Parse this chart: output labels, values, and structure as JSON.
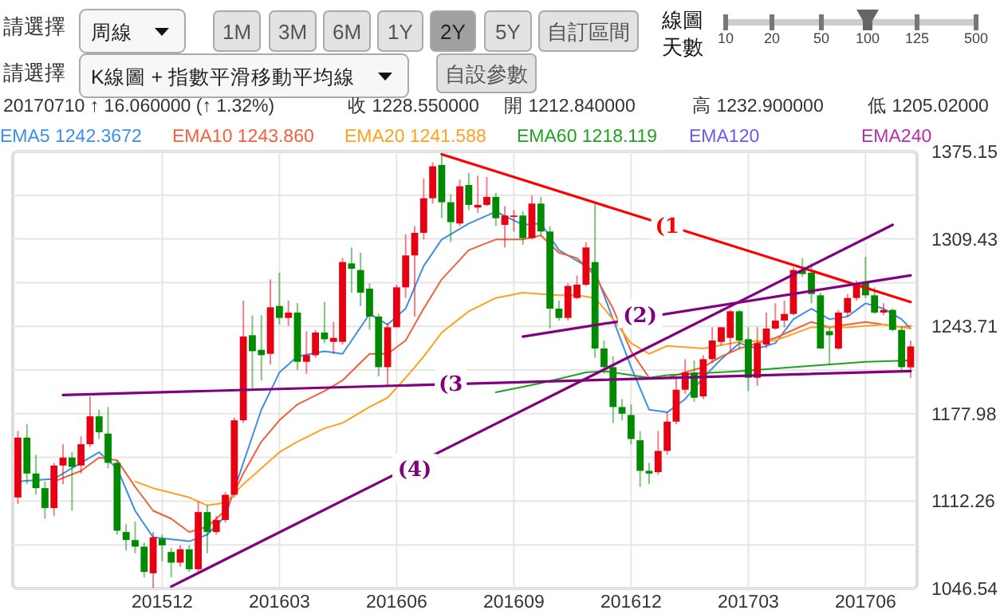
{
  "chart_data": {
    "type": "candlestick",
    "x": [
      "2015-08-17",
      "2015-08-24",
      "2015-08-31",
      "2015-09-07",
      "2015-09-14",
      "2015-09-21",
      "2015-09-28",
      "2015-10-05",
      "2015-10-12",
      "2015-10-19",
      "2015-10-26",
      "2015-11-02",
      "2015-11-09",
      "2015-11-16",
      "2015-11-23",
      "2015-11-30",
      "2015-12-07",
      "2015-12-14",
      "2015-12-21",
      "2015-12-28",
      "2016-01-04",
      "2016-01-11",
      "2016-01-18",
      "2016-01-25",
      "2016-02-01",
      "2016-02-08",
      "2016-02-15",
      "2016-02-22",
      "2016-02-29",
      "2016-03-07",
      "2016-03-14",
      "2016-03-21",
      "2016-03-28",
      "2016-04-04",
      "2016-04-11",
      "2016-04-18",
      "2016-04-25",
      "2016-05-02",
      "2016-05-09",
      "2016-05-16",
      "2016-05-23",
      "2016-05-30",
      "2016-06-06",
      "2016-06-13",
      "2016-06-20",
      "2016-06-27",
      "2016-07-04",
      "2016-07-11",
      "2016-07-18",
      "2016-07-25",
      "2016-08-01",
      "2016-08-08",
      "2016-08-15",
      "2016-08-22",
      "2016-08-29",
      "2016-09-05",
      "2016-09-12",
      "2016-09-19",
      "2016-09-26",
      "2016-10-03",
      "2016-10-10",
      "2016-10-17",
      "2016-10-24",
      "2016-10-31",
      "2016-11-07",
      "2016-11-14",
      "2016-11-21",
      "2016-11-28",
      "2016-12-05",
      "2016-12-12",
      "2016-12-19",
      "2016-12-26",
      "2017-01-02",
      "2017-01-09",
      "2017-01-16",
      "2017-01-23",
      "2017-01-30",
      "2017-02-06",
      "2017-02-13",
      "2017-02-20",
      "2017-02-27",
      "2017-03-06",
      "2017-03-13",
      "2017-03-20",
      "2017-03-27",
      "2017-04-03",
      "2017-04-10",
      "2017-04-17",
      "2017-04-24",
      "2017-05-01",
      "2017-05-08",
      "2017-05-15",
      "2017-05-22",
      "2017-05-29",
      "2017-06-05",
      "2017-06-12",
      "2017-06-19",
      "2017-06-26",
      "2017-07-03",
      "2017-07-10"
    ],
    "ohlc": [
      [
        1115,
        1165,
        1110,
        1160
      ],
      [
        1160,
        1170,
        1125,
        1133
      ],
      [
        1133,
        1147,
        1117,
        1122
      ],
      [
        1122,
        1127,
        1099,
        1107
      ],
      [
        1107,
        1141,
        1101,
        1139
      ],
      [
        1139,
        1155,
        1125,
        1145
      ],
      [
        1145,
        1149,
        1105,
        1138
      ],
      [
        1139,
        1161,
        1133,
        1155
      ],
      [
        1155,
        1191,
        1153,
        1176
      ],
      [
        1176,
        1181,
        1159,
        1164
      ],
      [
        1163,
        1183,
        1137,
        1141
      ],
      [
        1141,
        1143,
        1087,
        1090
      ],
      [
        1089,
        1095,
        1075,
        1083
      ],
      [
        1083,
        1097,
        1073,
        1078
      ],
      [
        1078,
        1081,
        1055,
        1059
      ],
      [
        1058,
        1089,
        1047,
        1085
      ],
      [
        1084,
        1087,
        1067,
        1079
      ],
      [
        1074,
        1077,
        1055,
        1066
      ],
      [
        1066,
        1079,
        1063,
        1076
      ],
      [
        1076,
        1079,
        1059,
        1061
      ],
      [
        1061,
        1112,
        1059,
        1104
      ],
      [
        1104,
        1109,
        1073,
        1089
      ],
      [
        1089,
        1101,
        1087,
        1098
      ],
      [
        1098,
        1119,
        1096,
        1117
      ],
      [
        1117,
        1175,
        1115,
        1173
      ],
      [
        1173,
        1263,
        1171,
        1236
      ],
      [
        1237,
        1252,
        1197,
        1225
      ],
      [
        1226,
        1252,
        1203,
        1222
      ],
      [
        1223,
        1279,
        1215,
        1258
      ],
      [
        1259,
        1284,
        1245,
        1250
      ],
      [
        1250,
        1263,
        1244,
        1254
      ],
      [
        1254,
        1261,
        1211,
        1217
      ],
      [
        1217,
        1240,
        1208,
        1222
      ],
      [
        1222,
        1241,
        1220,
        1239
      ],
      [
        1239,
        1262,
        1231,
        1234
      ],
      [
        1232,
        1247,
        1223,
        1235
      ],
      [
        1232,
        1295,
        1230,
        1292
      ],
      [
        1291,
        1303,
        1269,
        1287
      ],
      [
        1286,
        1299,
        1259,
        1269
      ],
      [
        1272,
        1276,
        1241,
        1251
      ],
      [
        1251,
        1253,
        1206,
        1213
      ],
      [
        1213,
        1246,
        1199,
        1243
      ],
      [
        1243,
        1275,
        1243,
        1273
      ],
      [
        1273,
        1313,
        1265,
        1297
      ],
      [
        1297,
        1319,
        1251,
        1314
      ],
      [
        1314,
        1355,
        1309,
        1340
      ],
      [
        1340,
        1367,
        1336,
        1364
      ],
      [
        1365,
        1374,
        1325,
        1337
      ],
      [
        1337,
        1343,
        1307,
        1322
      ],
      [
        1321,
        1354,
        1319,
        1349
      ],
      [
        1350,
        1359,
        1331,
        1335
      ],
      [
        1333,
        1357,
        1329,
        1335
      ],
      [
        1335,
        1356,
        1334,
        1341
      ],
      [
        1341,
        1344,
        1319,
        1325
      ],
      [
        1320,
        1334,
        1303,
        1327
      ],
      [
        1326,
        1331,
        1315,
        1327
      ],
      [
        1327,
        1330,
        1305,
        1310
      ],
      [
        1310,
        1342,
        1309,
        1336
      ],
      [
        1336,
        1341,
        1312,
        1315
      ],
      [
        1315,
        1319,
        1242,
        1257
      ],
      [
        1257,
        1263,
        1248,
        1250
      ],
      [
        1250,
        1276,
        1248,
        1274
      ],
      [
        1265,
        1282,
        1264,
        1275
      ],
      [
        1275,
        1307,
        1274,
        1303
      ],
      [
        1292,
        1336,
        1220,
        1227
      ],
      [
        1227,
        1233,
        1208,
        1213
      ],
      [
        1213,
        1221,
        1171,
        1183
      ],
      [
        1183,
        1189,
        1173,
        1178
      ],
      [
        1177,
        1185,
        1155,
        1159
      ],
      [
        1158,
        1165,
        1123,
        1135
      ],
      [
        1135,
        1141,
        1125,
        1133
      ],
      [
        1134,
        1165,
        1132,
        1150
      ],
      [
        1150,
        1179,
        1147,
        1172
      ],
      [
        1172,
        1205,
        1170,
        1196
      ],
      [
        1196,
        1219,
        1193,
        1209
      ],
      [
        1209,
        1218,
        1187,
        1190
      ],
      [
        1191,
        1222,
        1189,
        1219
      ],
      [
        1219,
        1243,
        1216,
        1233
      ],
      [
        1232,
        1243,
        1229,
        1243
      ],
      [
        1235,
        1256,
        1225,
        1255
      ],
      [
        1255,
        1256,
        1227,
        1233
      ],
      [
        1234,
        1243,
        1195,
        1205
      ],
      [
        1205,
        1243,
        1199,
        1231
      ],
      [
        1230,
        1254,
        1227,
        1242
      ],
      [
        1242,
        1261,
        1241,
        1248
      ],
      [
        1248,
        1263,
        1243,
        1253
      ],
      [
        1253,
        1288,
        1252,
        1286
      ],
      [
        1286,
        1295,
        1281,
        1283
      ],
      [
        1284,
        1291,
        1261,
        1268
      ],
      [
        1267,
        1269,
        1227,
        1227
      ],
      [
        1240,
        1243,
        1215,
        1237
      ],
      [
        1227,
        1256,
        1226,
        1254
      ],
      [
        1254,
        1268,
        1251,
        1265
      ],
      [
        1265,
        1278,
        1263,
        1276
      ],
      [
        1277,
        1296,
        1265,
        1267
      ],
      [
        1267,
        1273,
        1253,
        1254
      ],
      [
        1254,
        1261,
        1252,
        1256
      ],
      [
        1256,
        1257,
        1240,
        1241
      ],
      [
        1241,
        1244,
        1211,
        1213
      ],
      [
        1212.84,
        1232.9,
        1205.02,
        1228.55
      ]
    ],
    "series": [
      {
        "type": "line",
        "name": "EMA5 1242.3672",
        "color": "#3d8fe6",
        "x": [
          "2015-08-17",
          "2015-09-14",
          "2015-10-05",
          "2015-10-19",
          "2015-11-02",
          "2015-11-16",
          "2015-11-30",
          "2015-12-28",
          "2016-01-11",
          "2016-01-25",
          "2016-02-08",
          "2016-02-22",
          "2016-03-07",
          "2016-03-21",
          "2016-04-11",
          "2016-04-25",
          "2016-05-16",
          "2016-05-30",
          "2016-06-13",
          "2016-06-27",
          "2016-07-11",
          "2016-08-01",
          "2016-08-22",
          "2016-09-12",
          "2016-09-26",
          "2016-10-10",
          "2016-11-07",
          "2016-11-21",
          "2016-12-05",
          "2016-12-19",
          "2017-01-02",
          "2017-01-16",
          "2017-01-30",
          "2017-02-13",
          "2017-02-27",
          "2017-03-13",
          "2017-03-27",
          "2017-04-10",
          "2017-04-24",
          "2017-05-08",
          "2017-05-22",
          "2017-06-05",
          "2017-06-19",
          "2017-07-03",
          "2017-07-10"
        ],
        "values": [
          1127,
          1129,
          1141,
          1149,
          1137,
          1105,
          1085,
          1082,
          1087,
          1101,
          1141,
          1181,
          1209,
          1221,
          1225,
          1223,
          1253,
          1245,
          1257,
          1289,
          1309,
          1321,
          1330,
          1320,
          1321,
          1301,
          1285,
          1249,
          1213,
          1181,
          1179,
          1189,
          1205,
          1219,
          1231,
          1227,
          1231,
          1249,
          1257,
          1249,
          1251,
          1261,
          1257,
          1249,
          1242
        ]
      },
      {
        "type": "line",
        "name": "EMA10 1243.860",
        "color": "#f0603c",
        "x": [
          "2015-09-14",
          "2015-10-05",
          "2015-10-19",
          "2015-11-02",
          "2015-11-16",
          "2015-11-30",
          "2015-12-14",
          "2015-12-28",
          "2016-01-11",
          "2016-01-25",
          "2016-02-08",
          "2016-02-22",
          "2016-03-07",
          "2016-03-21",
          "2016-04-11",
          "2016-04-25",
          "2016-05-16",
          "2016-05-30",
          "2016-06-13",
          "2016-06-27",
          "2016-07-11",
          "2016-08-01",
          "2016-08-22",
          "2016-09-12",
          "2016-09-26",
          "2016-10-10",
          "2016-10-24",
          "2016-11-07",
          "2016-11-21",
          "2016-12-05",
          "2016-12-19",
          "2017-01-02",
          "2017-01-16",
          "2017-01-30",
          "2017-02-13",
          "2017-02-27",
          "2017-03-13",
          "2017-03-27",
          "2017-04-10",
          "2017-04-24",
          "2017-05-08",
          "2017-05-22",
          "2017-06-05",
          "2017-06-19",
          "2017-07-03",
          "2017-07-10"
        ],
        "values": [
          1127,
          1135,
          1145,
          1143,
          1123,
          1105,
          1099,
          1089,
          1093,
          1105,
          1133,
          1157,
          1173,
          1185,
          1195,
          1203,
          1223,
          1223,
          1233,
          1257,
          1279,
          1301,
          1309,
          1309,
          1312,
          1299,
          1295,
          1282,
          1257,
          1225,
          1205,
          1205,
          1209,
          1213,
          1221,
          1227,
          1231,
          1235,
          1241,
          1247,
          1243,
          1245,
          1247,
          1245,
          1243,
          1244
        ]
      },
      {
        "type": "line",
        "name": "EMA20 1241.588",
        "color": "#ffa020",
        "x": [
          "2015-11-16",
          "2015-11-30",
          "2015-12-28",
          "2016-01-11",
          "2016-01-25",
          "2016-02-08",
          "2016-02-22",
          "2016-03-07",
          "2016-03-21",
          "2016-04-11",
          "2016-04-25",
          "2016-05-16",
          "2016-05-30",
          "2016-06-13",
          "2016-06-27",
          "2016-07-11",
          "2016-08-01",
          "2016-08-22",
          "2016-09-12",
          "2016-09-26",
          "2016-10-10",
          "2016-10-24",
          "2016-11-07",
          "2016-11-21",
          "2016-12-05",
          "2016-12-19",
          "2017-01-02",
          "2017-01-30",
          "2017-02-27",
          "2017-03-27",
          "2017-04-24",
          "2017-05-22",
          "2017-06-19",
          "2017-07-10"
        ],
        "values": [
          1127,
          1122,
          1115,
          1109,
          1111,
          1125,
          1137,
          1149,
          1157,
          1167,
          1171,
          1183,
          1190,
          1205,
          1221,
          1239,
          1255,
          1265,
          1269,
          1268,
          1267,
          1267,
          1265,
          1249,
          1231,
          1223,
          1229,
          1227,
          1232,
          1233,
          1243,
          1243,
          1245,
          1242
        ]
      },
      {
        "type": "line",
        "name": "EMA60 1218.119",
        "color": "#22a022",
        "x": [
          "2016-08-22",
          "2016-09-26",
          "2016-10-31",
          "2016-11-14",
          "2016-12-19",
          "2017-01-02",
          "2017-02-27",
          "2017-04-24",
          "2017-06-05",
          "2017-07-10"
        ],
        "values": [
          1194,
          1201,
          1209,
          1210,
          1205,
          1207,
          1210,
          1214,
          1217,
          1218
        ]
      },
      {
        "type": "line",
        "name": "EMA120",
        "color": "#6a5aed",
        "values": [
          null,
          null,
          null,
          null,
          null,
          null,
          null,
          null,
          null,
          null,
          null,
          null,
          null,
          null,
          null,
          null,
          null,
          null,
          null,
          null,
          null,
          null,
          null,
          null,
          null,
          null,
          null,
          null,
          null,
          null,
          null,
          null,
          null,
          null,
          null,
          null,
          null,
          null,
          null,
          null,
          null,
          null,
          null,
          null,
          null,
          null,
          null,
          null,
          null,
          null,
          null,
          null,
          null,
          null,
          null,
          null,
          null,
          null,
          null,
          null,
          null,
          null,
          null,
          null,
          null,
          null,
          null,
          null,
          null,
          null,
          null,
          null,
          null,
          null,
          null,
          null,
          null,
          null,
          null,
          null,
          null,
          null,
          null,
          null,
          null,
          null,
          null,
          null,
          null,
          null,
          null,
          null,
          null,
          null,
          null,
          null,
          null,
          null,
          null,
          null
        ]
      },
      {
        "type": "line",
        "name": "EMA240",
        "color": "#b030b0",
        "values": [
          null,
          null,
          null,
          null,
          null,
          null,
          null,
          null,
          null,
          null,
          null,
          null,
          null,
          null,
          null,
          null,
          null,
          null,
          null,
          null,
          null,
          null,
          null,
          null,
          null,
          null,
          null,
          null,
          null,
          null,
          null,
          null,
          null,
          null,
          null,
          null,
          null,
          null,
          null,
          null,
          null,
          null,
          null,
          null,
          null,
          null,
          null,
          null,
          null,
          null,
          null,
          null,
          null,
          null,
          null,
          null,
          null,
          null,
          null,
          null,
          null,
          null,
          null,
          null,
          null,
          null,
          null,
          null,
          null,
          null,
          null,
          null,
          null,
          null,
          null,
          null,
          null,
          null,
          null,
          null,
          null,
          null,
          null,
          null,
          null,
          null,
          null,
          null,
          null,
          null,
          null,
          null,
          null,
          null,
          null,
          null,
          null,
          null,
          null,
          null
        ]
      },
      {
        "type": "line",
        "color": "#ff0000",
        "x": [
          "2016-07-11",
          "2017-07-10"
        ],
        "values": [
          1373,
          1262
        ]
      },
      {
        "type": "line",
        "color": "#800080",
        "x": [
          "2016-09-12",
          "2017-07-10"
        ],
        "values": [
          1236,
          1282
        ]
      },
      {
        "type": "line",
        "color": "#800080",
        "x": [
          "2015-09-21",
          "2017-07-10"
        ],
        "values": [
          1192,
          1210
        ]
      },
      {
        "type": "line",
        "color": "#800080",
        "x": [
          "2015-12-14",
          "2017-06-26"
        ],
        "values": [
          1048,
          1320
        ]
      }
    ],
    "xlim": [
      "2015-08-13",
      "2017-07-15"
    ],
    "xticks": [
      {
        "value": "2015-12-07",
        "label": "201512"
      },
      {
        "value": "2016-03-07",
        "label": "201603"
      },
      {
        "value": "2016-06-06",
        "label": "201606"
      },
      {
        "value": "2016-09-05",
        "label": "201609"
      },
      {
        "value": "2016-12-05",
        "label": "201612"
      },
      {
        "value": "2017-03-06",
        "label": "201703"
      },
      {
        "value": "2017-06-05",
        "label": "201706"
      }
    ],
    "ylim": [
      1046.54,
      1375.15
    ],
    "yticks": [
      1046.54,
      {
        "value": 1079.4,
        "label": null
      },
      1112.26,
      {
        "value": 1145.12,
        "label": null
      },
      1177.98,
      {
        "value": 1210.85,
        "label": null
      },
      1243.71,
      {
        "value": 1276.57,
        "label": null
      },
      1309.43,
      {
        "value": 1342.29,
        "label": null
      },
      1375.15
    ],
    "grid": true,
    "legend": "top left",
    "annotations": [
      {
        "text": "(1",
        "x": "2017-01-02",
        "y": 1320
      },
      {
        "text": "(2)",
        "x": "2016-12-12",
        "y": 1253
      },
      {
        "text": "(3",
        "x": "2016-07-18",
        "y": 1201
      },
      {
        "text": "(4)",
        "x": "2016-06-20",
        "y": 1137
      },
      "請選擇",
      "周線",
      "1M",
      "3M",
      "6M",
      "1Y",
      "2Y",
      "5Y",
      "自訂區間",
      "線圖",
      "天數",
      "10",
      "20",
      "50",
      "100",
      "125",
      "500",
      "請選擇",
      "K線圖 + 指數平滑移動平均線",
      "自設參數",
      "20170710 ↑ 16.060000 (↑ 1.32%)",
      "收 1228.550000",
      "開 1212.840000",
      "高 1232.900000",
      "低 1205.02000"
    ]
  }
}
